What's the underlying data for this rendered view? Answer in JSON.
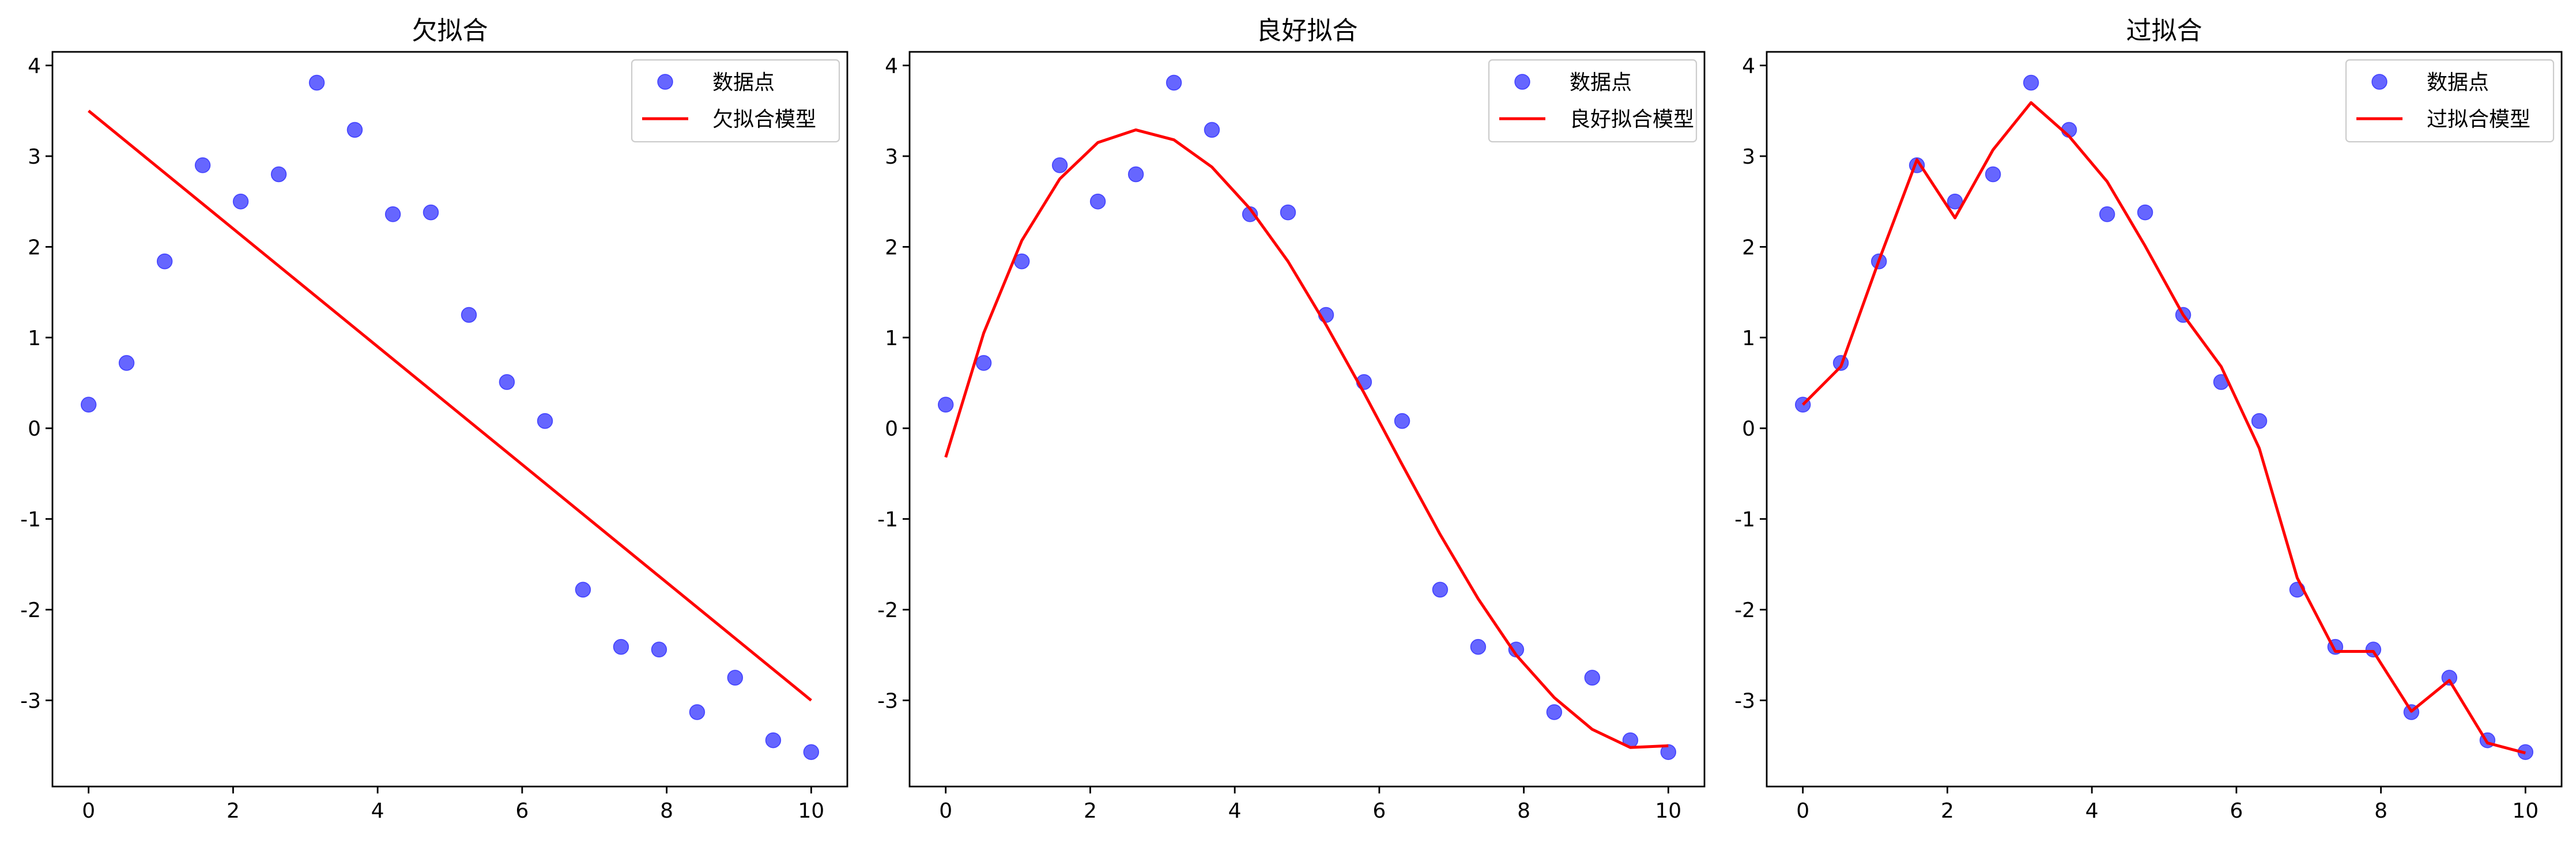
{
  "chart_data": [
    {
      "type": "scatter+line",
      "title": "欠拟合",
      "xlim": [
        -0.5,
        10.5
      ],
      "ylim": [
        -3.95,
        4.15
      ],
      "xticks": [
        0,
        2,
        4,
        6,
        8,
        10
      ],
      "yticks": [
        -3,
        -2,
        -1,
        0,
        1,
        2,
        3,
        4
      ],
      "legend_position": "upper right",
      "grid": false,
      "series": [
        {
          "name": "数据点",
          "kind": "scatter",
          "color": "#0000ff",
          "x": [
            0,
            0.526,
            1.053,
            1.579,
            2.105,
            2.632,
            3.158,
            3.684,
            4.211,
            4.737,
            5.263,
            5.789,
            6.316,
            6.842,
            7.368,
            7.895,
            8.421,
            8.947,
            9.474,
            10
          ],
          "y": [
            0.26,
            0.72,
            1.84,
            2.9,
            2.5,
            2.8,
            3.81,
            3.29,
            2.36,
            2.38,
            1.25,
            0.51,
            0.08,
            -1.78,
            -2.41,
            -2.44,
            -3.13,
            -2.75,
            -3.44,
            -3.57
          ]
        },
        {
          "name": "欠拟合模型",
          "kind": "line",
          "color": "#ff0000",
          "x": [
            0,
            10
          ],
          "y": [
            3.5,
            -3.0
          ]
        }
      ]
    },
    {
      "type": "scatter+line",
      "title": "良好拟合",
      "xlim": [
        -0.5,
        10.5
      ],
      "ylim": [
        -3.95,
        4.15
      ],
      "xticks": [
        0,
        2,
        4,
        6,
        8,
        10
      ],
      "yticks": [
        -3,
        -2,
        -1,
        0,
        1,
        2,
        3,
        4
      ],
      "legend_position": "upper right",
      "grid": false,
      "series": [
        {
          "name": "数据点",
          "kind": "scatter",
          "color": "#0000ff",
          "x": [
            0,
            0.526,
            1.053,
            1.579,
            2.105,
            2.632,
            3.158,
            3.684,
            4.211,
            4.737,
            5.263,
            5.789,
            6.316,
            6.842,
            7.368,
            7.895,
            8.421,
            8.947,
            9.474,
            10
          ],
          "y": [
            0.26,
            0.72,
            1.84,
            2.9,
            2.5,
            2.8,
            3.81,
            3.29,
            2.36,
            2.38,
            1.25,
            0.51,
            0.08,
            -1.78,
            -2.41,
            -2.44,
            -3.13,
            -2.75,
            -3.44,
            -3.57
          ]
        },
        {
          "name": "良好拟合模型",
          "kind": "line",
          "color": "#ff0000",
          "x": [
            0,
            0.526,
            1.053,
            1.579,
            2.105,
            2.632,
            3.158,
            3.684,
            4.211,
            4.737,
            5.263,
            5.789,
            6.316,
            6.842,
            7.368,
            7.895,
            8.421,
            8.947,
            9.474,
            10
          ],
          "y": [
            -0.32,
            1.05,
            2.07,
            2.75,
            3.15,
            3.29,
            3.18,
            2.88,
            2.42,
            1.84,
            1.14,
            0.39,
            -0.4,
            -1.17,
            -1.88,
            -2.5,
            -2.97,
            -3.32,
            -3.52,
            -3.5
          ]
        }
      ]
    },
    {
      "type": "scatter+line",
      "title": "过拟合",
      "xlim": [
        -0.5,
        10.5
      ],
      "ylim": [
        -3.95,
        4.15
      ],
      "xticks": [
        0,
        2,
        4,
        6,
        8,
        10
      ],
      "yticks": [
        -3,
        -2,
        -1,
        0,
        1,
        2,
        3,
        4
      ],
      "legend_position": "upper right",
      "grid": false,
      "series": [
        {
          "name": "数据点",
          "kind": "scatter",
          "color": "#0000ff",
          "x": [
            0,
            0.526,
            1.053,
            1.579,
            2.105,
            2.632,
            3.158,
            3.684,
            4.211,
            4.737,
            5.263,
            5.789,
            6.316,
            6.842,
            7.368,
            7.895,
            8.421,
            8.947,
            9.474,
            10
          ],
          "y": [
            0.26,
            0.72,
            1.84,
            2.9,
            2.5,
            2.8,
            3.81,
            3.29,
            2.36,
            2.38,
            1.25,
            0.51,
            0.08,
            -1.78,
            -2.41,
            -2.44,
            -3.13,
            -2.75,
            -3.44,
            -3.57
          ]
        },
        {
          "name": "过拟合模型",
          "kind": "line",
          "color": "#ff0000",
          "x": [
            0,
            0.526,
            1.053,
            1.579,
            2.105,
            2.632,
            3.158,
            3.684,
            4.211,
            4.737,
            5.263,
            5.789,
            6.316,
            6.842,
            7.368,
            7.895,
            8.421,
            8.947,
            9.474,
            10
          ],
          "y": [
            0.26,
            0.68,
            1.85,
            2.96,
            2.32,
            3.07,
            3.59,
            3.22,
            2.72,
            2.01,
            1.25,
            0.68,
            -0.22,
            -1.65,
            -2.46,
            -2.46,
            -3.12,
            -2.78,
            -3.47,
            -3.58
          ]
        }
      ]
    }
  ]
}
